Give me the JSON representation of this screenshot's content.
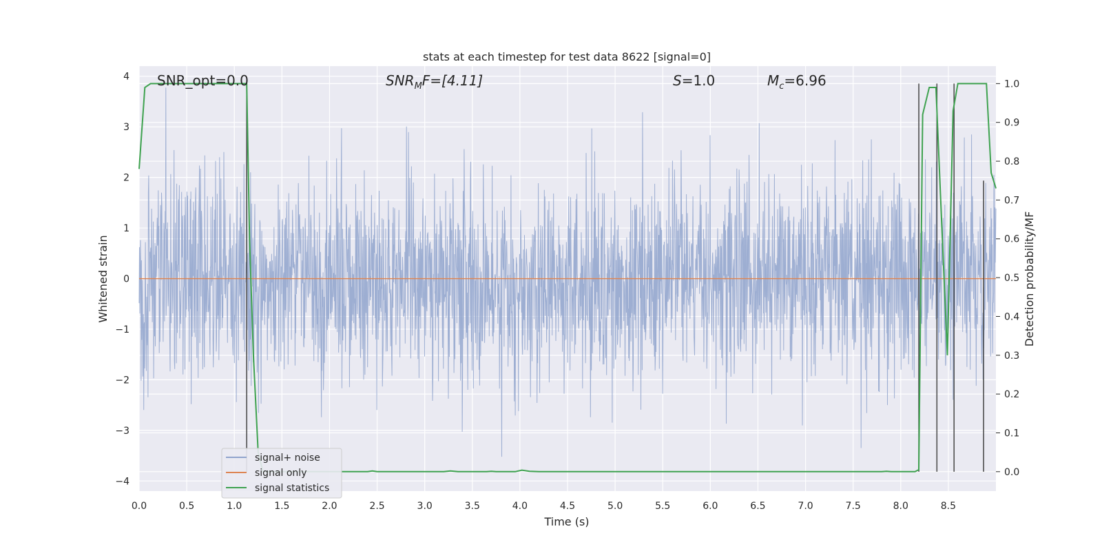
{
  "colors": {
    "background": "#eaeaf2",
    "grid": "#ffffff",
    "noise": "#8fa3cc",
    "signal": "#dd8452",
    "statistics": "#3ea24f",
    "vline": "#444444",
    "text": "#262626"
  },
  "chart_data": {
    "type": "line",
    "title": "stats at each timestep for test data 8622 [signal=0]",
    "xlabel": "Time (s)",
    "ylabel": "Whitened strain",
    "ylabel_right": "Detection probability/MF",
    "xlim": [
      0.0,
      9.0
    ],
    "ylim": [
      -4.2,
      4.2
    ],
    "ylim_right": [
      -0.05,
      1.045
    ],
    "x_ticks": [
      0.0,
      0.5,
      1.0,
      1.5,
      2.0,
      2.5,
      3.0,
      3.5,
      4.0,
      4.5,
      5.0,
      5.5,
      6.0,
      6.5,
      7.0,
      7.5,
      8.0,
      8.5
    ],
    "x_tick_labels": [
      "0.0",
      "0.5",
      "1.0",
      "1.5",
      "2.0",
      "2.5",
      "3.0",
      "3.5",
      "4.0",
      "4.5",
      "5.0",
      "5.5",
      "6.0",
      "6.5",
      "7.0",
      "7.5",
      "8.0",
      "8.5"
    ],
    "y_ticks": [
      -4,
      -3,
      -2,
      -1,
      0,
      1,
      2,
      3,
      4
    ],
    "y_tick_labels": [
      "−4",
      "−3",
      "−2",
      "−1",
      "0",
      "1",
      "2",
      "3",
      "4"
    ],
    "y_right_ticks": [
      0.0,
      0.1,
      0.2,
      0.3,
      0.4,
      0.5,
      0.6,
      0.7,
      0.8,
      0.9,
      1.0
    ],
    "y_right_tick_labels": [
      "0.0",
      "0.1",
      "0.2",
      "0.3",
      "0.4",
      "0.5",
      "0.6",
      "0.7",
      "0.8",
      "0.9",
      "1.0"
    ],
    "annotations": {
      "snr_opt": "SNR_opt=0.0",
      "snr_mf_sym": "SNR",
      "snr_mf_sub": "M",
      "snr_mf_rest": "F=[4.11]",
      "s_sym": "S",
      "s_rest": "=1.0",
      "mc_sym": "M",
      "mc_sub": "c",
      "mc_rest": "=6.96"
    },
    "series": [
      {
        "name": "signal+ noise",
        "kind": "noise",
        "rms": 1.0,
        "min": -4.0,
        "max": 3.9
      },
      {
        "name": "signal only",
        "kind": "constant",
        "value": 0.0
      },
      {
        "name": "signal statistics",
        "axis": "right",
        "x": [
          0.0,
          0.06,
          0.12,
          0.2,
          0.5,
          0.8,
          1.0,
          1.1,
          1.13,
          1.16,
          1.2,
          1.25,
          1.3,
          1.5,
          2.0,
          2.4,
          2.45,
          2.5,
          3.0,
          3.2,
          3.27,
          3.35,
          3.5,
          3.65,
          3.7,
          3.75,
          3.95,
          4.02,
          4.1,
          4.2,
          4.5,
          5.0,
          6.0,
          7.0,
          7.8,
          7.85,
          7.9,
          8.15,
          8.19,
          8.23,
          8.3,
          8.37,
          8.42,
          8.49,
          8.55,
          8.6,
          8.65,
          8.85,
          8.9,
          8.95,
          9.0
        ],
        "y": [
          0.78,
          0.99,
          1.0,
          1.0,
          1.0,
          1.0,
          1.0,
          1.0,
          1.0,
          0.6,
          0.3,
          0.05,
          0.0,
          0.0,
          0.0,
          0.0,
          0.002,
          0.0,
          0.0,
          0.0,
          0.002,
          0.0,
          0.0,
          0.0,
          0.001,
          0.0,
          0.0,
          0.004,
          0.001,
          0.0,
          0.0,
          0.0,
          0.0,
          0.0,
          0.0,
          0.001,
          0.0,
          0.0,
          0.005,
          0.92,
          0.99,
          0.99,
          0.7,
          0.3,
          0.93,
          1.0,
          1.0,
          1.0,
          1.0,
          0.77,
          0.73
        ]
      }
    ],
    "detection_lines": [
      {
        "x": 1.13,
        "y0": 0.0,
        "y1": 1.0
      },
      {
        "x": 8.19,
        "y0": 0.0,
        "y1": 1.0
      },
      {
        "x": 8.38,
        "y0": 0.0,
        "y1": 1.0
      },
      {
        "x": 8.56,
        "y0": 0.0,
        "y1": 1.0
      },
      {
        "x": 8.87,
        "y0": 0.0,
        "y1": 0.75
      }
    ],
    "legend": {
      "placement": "lower-left",
      "entries": [
        "signal+ noise",
        "signal only",
        "signal statistics"
      ]
    }
  }
}
